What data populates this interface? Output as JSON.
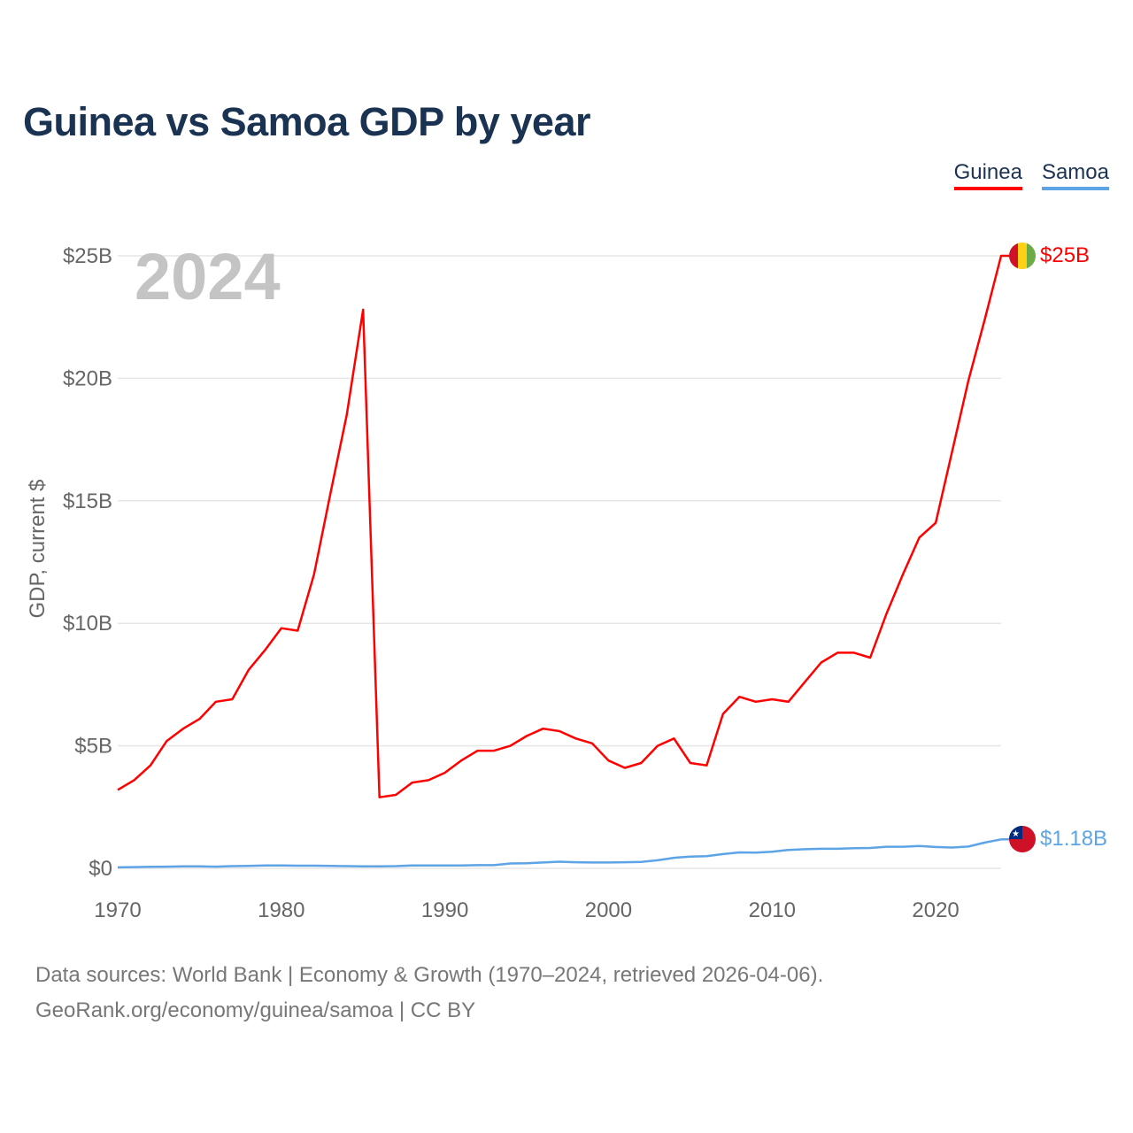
{
  "header": {
    "title": "Guinea vs Samoa GDP by year"
  },
  "legend": {
    "items": [
      "Guinea",
      "Samoa"
    ]
  },
  "year_watermark": "2024",
  "end_labels": {
    "guinea": "$25B",
    "samoa": "$1.18B"
  },
  "colors": {
    "guinea": "#ff0000",
    "samoa": "#5da4e6",
    "grid": "#e6e6e6",
    "axis_text": "#666666",
    "title": "#1b3352"
  },
  "icons": {
    "guinea_flag": "guinea-flag-icon",
    "samoa_flag": "samoa-flag-icon"
  },
  "footer": {
    "line1": "Data sources: World Bank | Economy & Growth (1970–2024, retrieved 2026-04-06).",
    "line2": "GeoRank.org/economy/guinea/samoa | CC BY"
  },
  "chart_data": {
    "type": "line",
    "title": "Guinea vs Samoa GDP by year",
    "xlabel": "",
    "ylabel": "GDP, current $",
    "xlim": [
      1970,
      2024
    ],
    "ylim": [
      0,
      25
    ],
    "y_unit": "billions USD",
    "xticks": [
      1970,
      1980,
      1990,
      2000,
      2010,
      2020
    ],
    "yticks": [
      0,
      5,
      10,
      15,
      20,
      25
    ],
    "ytick_labels": [
      "$0",
      "$5B",
      "$10B",
      "$15B",
      "$20B",
      "$25B"
    ],
    "grid": true,
    "legend_position": "top-right",
    "x": [
      1970,
      1971,
      1972,
      1973,
      1974,
      1975,
      1976,
      1977,
      1978,
      1979,
      1980,
      1981,
      1982,
      1983,
      1984,
      1985,
      1986,
      1987,
      1988,
      1989,
      1990,
      1991,
      1992,
      1993,
      1994,
      1995,
      1996,
      1997,
      1998,
      1999,
      2000,
      2001,
      2002,
      2003,
      2004,
      2005,
      2006,
      2007,
      2008,
      2009,
      2010,
      2011,
      2012,
      2013,
      2014,
      2015,
      2016,
      2017,
      2018,
      2019,
      2020,
      2021,
      2022,
      2023,
      2024
    ],
    "series": [
      {
        "name": "Guinea",
        "values": [
          3.2,
          3.6,
          4.2,
          5.2,
          5.7,
          6.1,
          6.8,
          6.9,
          8.1,
          8.9,
          9.8,
          9.7,
          12.0,
          15.3,
          18.5,
          22.8,
          2.9,
          3.0,
          3.5,
          3.6,
          3.9,
          4.4,
          4.8,
          4.8,
          5.0,
          5.4,
          5.7,
          5.6,
          5.3,
          5.1,
          4.4,
          4.1,
          4.3,
          5.0,
          5.3,
          4.3,
          4.2,
          6.3,
          7.0,
          6.8,
          6.9,
          6.8,
          7.6,
          8.4,
          8.8,
          8.8,
          8.6,
          10.4,
          12.0,
          13.5,
          14.1,
          17.0,
          19.9,
          22.4,
          25.0
        ]
      },
      {
        "name": "Samoa",
        "values": [
          0.04,
          0.05,
          0.06,
          0.07,
          0.08,
          0.08,
          0.07,
          0.09,
          0.1,
          0.12,
          0.12,
          0.11,
          0.11,
          0.1,
          0.09,
          0.08,
          0.08,
          0.09,
          0.12,
          0.12,
          0.12,
          0.12,
          0.13,
          0.13,
          0.2,
          0.21,
          0.24,
          0.27,
          0.25,
          0.24,
          0.24,
          0.25,
          0.26,
          0.33,
          0.43,
          0.48,
          0.5,
          0.58,
          0.65,
          0.64,
          0.68,
          0.75,
          0.78,
          0.8,
          0.8,
          0.82,
          0.83,
          0.88,
          0.88,
          0.91,
          0.87,
          0.85,
          0.89,
          1.05,
          1.18
        ]
      }
    ]
  }
}
